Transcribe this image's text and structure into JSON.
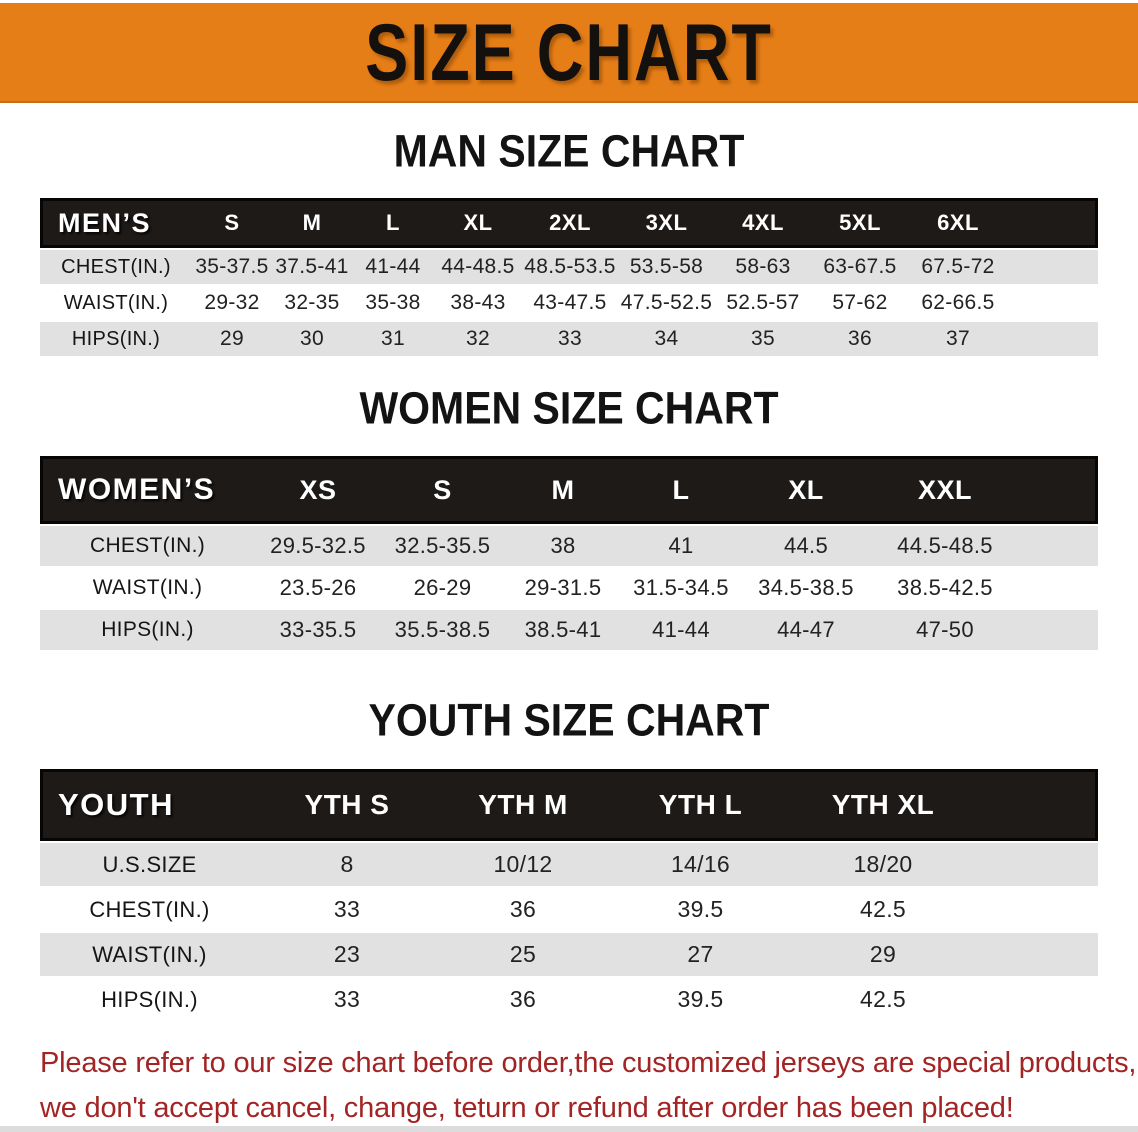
{
  "banner": {
    "title": "SIZE CHART"
  },
  "sections": [
    {
      "heading": "MAN SIZE CHART",
      "table": {
        "label": "MEN’S",
        "columns": [
          "S",
          "M",
          "L",
          "XL",
          "2XL",
          "3XL",
          "4XL",
          "5XL",
          "6XL"
        ],
        "rows": [
          {
            "label": "CHEST(IN.)",
            "values": [
              "35-37.5",
              "37.5-41",
              "41-44",
              "44-48.5",
              "48.5-53.5",
              "53.5-58",
              "58-63",
              "63-67.5",
              "67.5-72"
            ]
          },
          {
            "label": "WAIST(IN.)",
            "values": [
              "29-32",
              "32-35",
              "35-38",
              "38-43",
              "43-47.5",
              "47.5-52.5",
              "52.5-57",
              "57-62",
              "62-66.5"
            ]
          },
          {
            "label": "HIPS(IN.)",
            "values": [
              "29",
              "30",
              "31",
              "32",
              "33",
              "34",
              "35",
              "36",
              "37"
            ]
          }
        ]
      }
    },
    {
      "heading": "WOMEN SIZE CHART",
      "table": {
        "label": "WOMEN’S",
        "columns": [
          "XS",
          "S",
          "M",
          "L",
          "XL",
          "XXL"
        ],
        "rows": [
          {
            "label": "CHEST(IN.)",
            "values": [
              "29.5-32.5",
              "32.5-35.5",
              "38",
              "41",
              "44.5",
              "44.5-48.5"
            ]
          },
          {
            "label": "WAIST(IN.)",
            "values": [
              "23.5-26",
              "26-29",
              "29-31.5",
              "31.5-34.5",
              "34.5-38.5",
              "38.5-42.5"
            ]
          },
          {
            "label": "HIPS(IN.)",
            "values": [
              "33-35.5",
              "35.5-38.5",
              "38.5-41",
              "41-44",
              "44-47",
              "47-50"
            ]
          }
        ]
      }
    },
    {
      "heading": "YOUTH SIZE CHART",
      "table": {
        "label": "YOUTH",
        "columns": [
          "YTH S",
          "YTH M",
          "YTH L",
          "YTH XL"
        ],
        "rows": [
          {
            "label": "U.S.SIZE",
            "values": [
              "8",
              "10/12",
              "14/16",
              "18/20"
            ]
          },
          {
            "label": "CHEST(IN.)",
            "values": [
              "33",
              "36",
              "39.5",
              "42.5"
            ]
          },
          {
            "label": "WAIST(IN.)",
            "values": [
              "23",
              "25",
              "27",
              "29"
            ]
          },
          {
            "label": "HIPS(IN.)",
            "values": [
              "33",
              "36",
              "39.5",
              "42.5"
            ]
          }
        ]
      }
    }
  ],
  "disclaimer": {
    "line1": "Please refer to our size chart before order,the customized jerseys are special products,",
    "line2": "we don't accept cancel, change, teturn or refund after order has been placed!"
  },
  "colors": {
    "banner_orange": "#E67E17",
    "header_black": "#1E1A18",
    "row_grey": "#E1E1E1",
    "disclaimer_red": "#A32424"
  }
}
